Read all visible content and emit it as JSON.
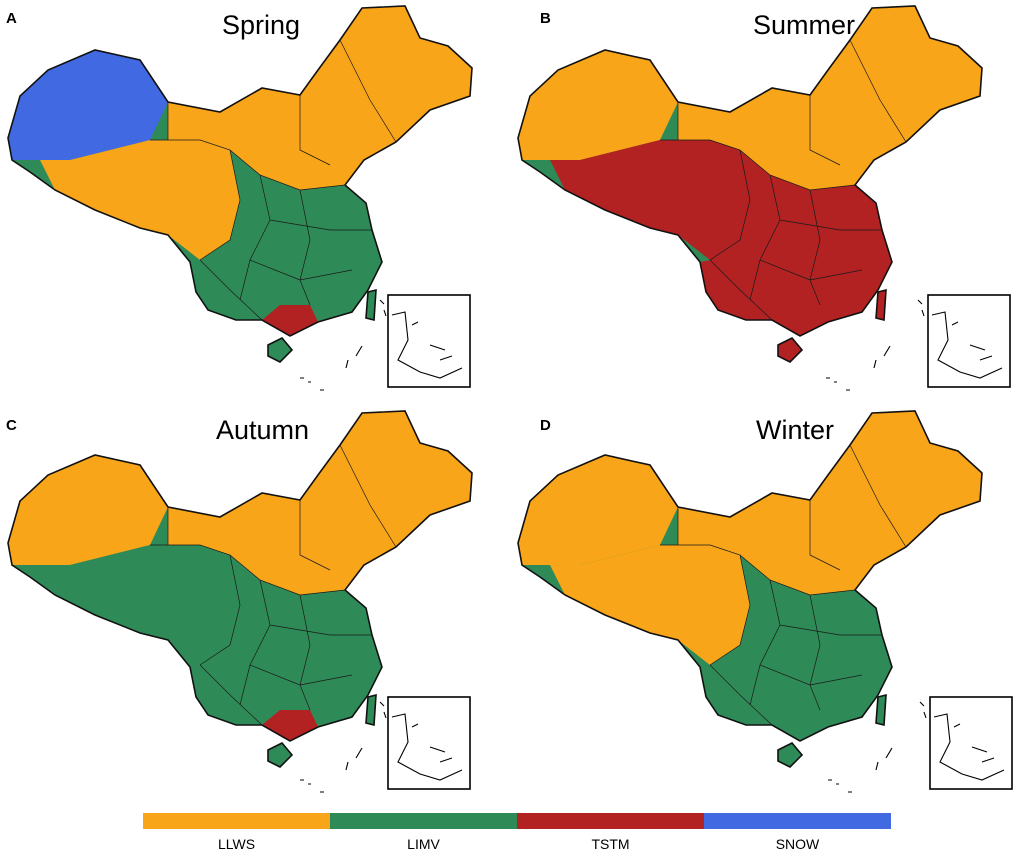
{
  "panels": [
    {
      "letter": "A",
      "title": "Spring"
    },
    {
      "letter": "B",
      "title": "Summer"
    },
    {
      "letter": "C",
      "title": "Autumn"
    },
    {
      "letter": "D",
      "title": "Winter"
    }
  ],
  "legend": [
    {
      "label": "LLWS",
      "color": "#F9A51A"
    },
    {
      "label": "LIMV",
      "color": "#2E8B57"
    },
    {
      "label": "TSTM",
      "color": "#B22222"
    },
    {
      "label": "SNOW",
      "color": "#4169E1"
    }
  ]
}
